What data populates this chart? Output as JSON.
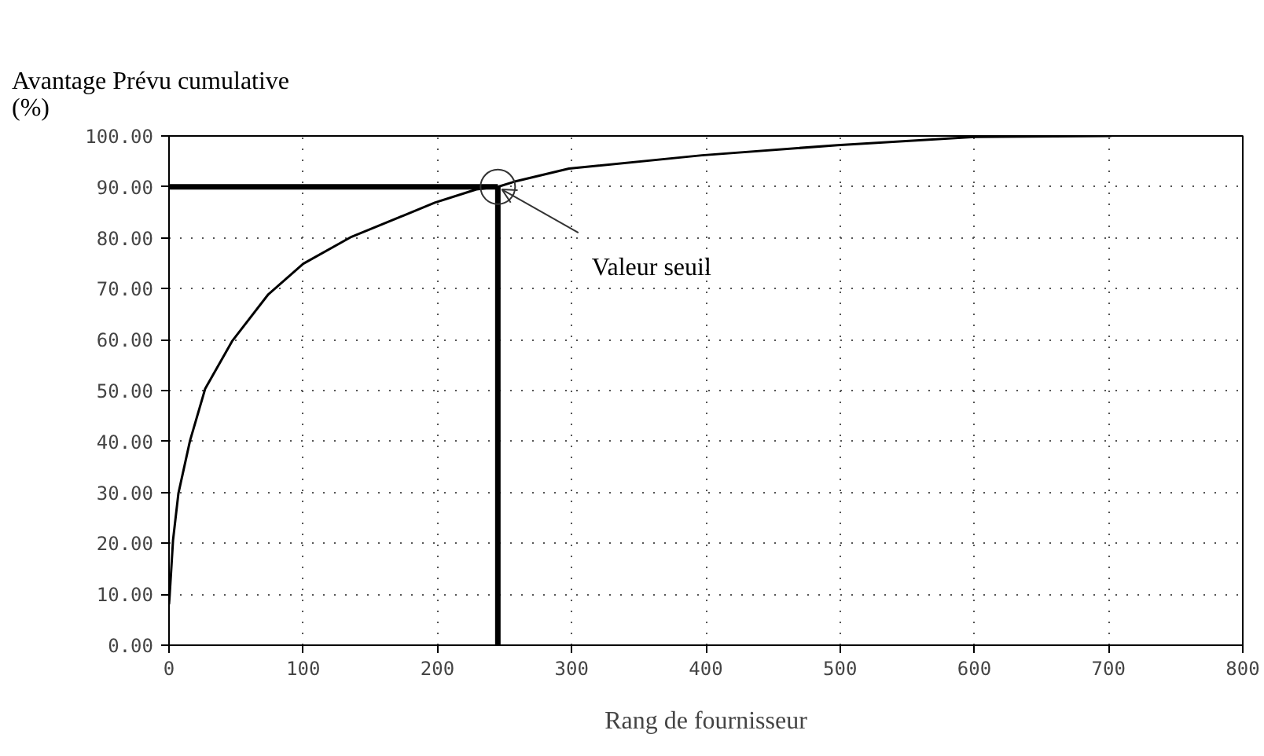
{
  "chart_data": {
    "type": "line",
    "title": "Avantage Prévu cumulative\n(%)",
    "xlabel": "Rang de fournisseur",
    "x": [
      0,
      0.5,
      3,
      7,
      15.6,
      27,
      47,
      74,
      100,
      136,
      175,
      198,
      229,
      245,
      257,
      298,
      397,
      498,
      600,
      702
    ],
    "series": [
      {
        "color": "#000000",
        "values": [
          8,
          9.8,
          20.6,
          29.8,
          40.1,
          50.4,
          59.7,
          68.9,
          74.9,
          80.2,
          84.4,
          86.9,
          89.5,
          90,
          91.0,
          93.6,
          96.2,
          98.2,
          99.8,
          100
        ]
      }
    ],
    "xlim": [
      0,
      800
    ],
    "ylim": [
      0,
      100
    ],
    "xticks": [
      0,
      100,
      200,
      300,
      400,
      500,
      600,
      700,
      800
    ],
    "yticks": [
      {
        "value": 0,
        "label": "0.00"
      },
      {
        "value": 10,
        "label": "10.00"
      },
      {
        "value": 20,
        "label": "20.00"
      },
      {
        "value": 30,
        "label": "30.00"
      },
      {
        "value": 40,
        "label": "40.00"
      },
      {
        "value": 50,
        "label": "50.00"
      },
      {
        "value": 60,
        "label": "60.00"
      },
      {
        "value": 70,
        "label": "70.00"
      },
      {
        "value": 80,
        "label": "80.00"
      },
      {
        "value": 90,
        "label": "90.00"
      },
      {
        "value": 100,
        "label": "100.00"
      }
    ],
    "ref_lines": [
      {
        "axis": "y",
        "value": 90,
        "label": null
      },
      {
        "axis": "x",
        "value": 245,
        "label": null
      }
    ],
    "annotations": [
      {
        "text": "Valeur seuil",
        "x": 245,
        "y": 90
      }
    ],
    "grid": true,
    "marker": "none",
    "line_style": "solid"
  }
}
